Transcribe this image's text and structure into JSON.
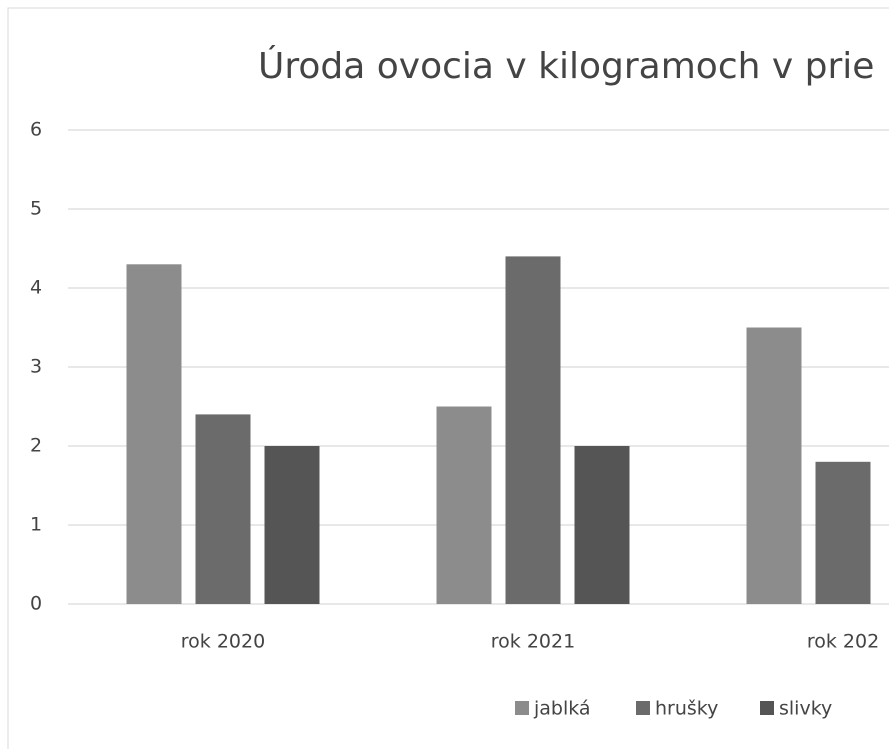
{
  "chart_data": {
    "type": "bar",
    "title": "Úroda ovocia v kilogramoch v prie",
    "categories": [
      "rok 2020",
      "rok 2021",
      "rok 202"
    ],
    "series": [
      {
        "name": "jablká",
        "color": "#8c8c8c",
        "values": [
          4.3,
          2.5,
          3.5
        ]
      },
      {
        "name": "hrušky",
        "color": "#6b6b6b",
        "values": [
          2.4,
          4.4,
          1.8
        ]
      },
      {
        "name": "slivky",
        "color": "#555555",
        "values": [
          2.0,
          2.0,
          null
        ]
      }
    ],
    "ylim": [
      0,
      6
    ],
    "yticks": [
      0,
      1,
      2,
      3,
      4,
      5,
      6
    ],
    "grid": true,
    "legend": "bottom"
  }
}
